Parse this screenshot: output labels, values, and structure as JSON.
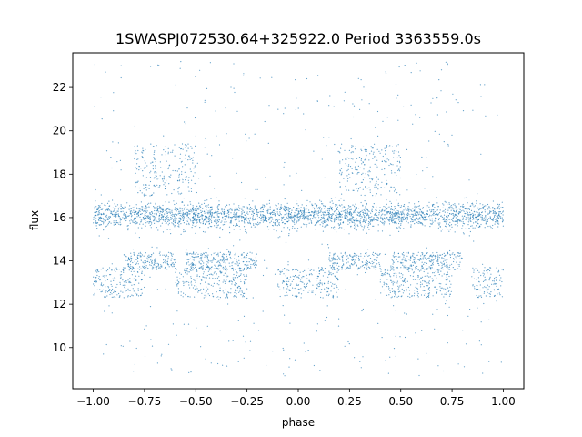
{
  "chart_data": {
    "type": "scatter",
    "title": "1SWASPJ072530.64+325922.0 Period 3363559.0s",
    "xlabel": "phase",
    "ylabel": "flux",
    "xlim": [
      -1.1,
      1.1
    ],
    "ylim": [
      8.1,
      23.6
    ],
    "x_ticks": [
      -1.0,
      -0.75,
      -0.5,
      -0.25,
      0.0,
      0.25,
      0.5,
      0.75,
      1.0
    ],
    "x_tick_labels": [
      "−1.00",
      "−0.75",
      "−0.50",
      "−0.25",
      "0.00",
      "0.25",
      "0.50",
      "0.75",
      "1.00"
    ],
    "y_ticks": [
      10,
      12,
      14,
      16,
      18,
      20,
      22
    ],
    "y_tick_labels": [
      "10",
      "12",
      "14",
      "16",
      "18",
      "20",
      "22"
    ],
    "grid": false,
    "legend": "none",
    "marker_color": "#1f77b4",
    "phase_range": [
      -1.0,
      1.0
    ],
    "point_density": "dense",
    "series": [
      {
        "description": "main band of points, symmetric about phase 0 (repeats with period 1 in phase)",
        "y_center": 16.1,
        "y_spread": [
          15.0,
          17.0
        ]
      },
      {
        "description": "lower clump",
        "y_range": [
          12.3,
          13.7
        ],
        "phase_ranges": [
          [
            -1.0,
            -0.75
          ],
          [
            -0.6,
            -0.25
          ],
          [
            -0.1,
            0.2
          ],
          [
            0.4,
            0.75
          ],
          [
            0.85,
            1.0
          ]
        ]
      },
      {
        "description": "mid-lower clump",
        "y_range": [
          13.6,
          14.4
        ],
        "phase_ranges": [
          [
            -0.85,
            -0.6
          ],
          [
            -0.55,
            -0.2
          ],
          [
            0.15,
            0.4
          ],
          [
            0.45,
            0.8
          ]
        ]
      },
      {
        "description": "upper excursions",
        "y_range": [
          17.0,
          19.4
        ],
        "phase_ranges": [
          [
            -0.8,
            -0.5
          ],
          [
            0.2,
            0.5
          ]
        ]
      }
    ],
    "scattered_outliers_y_range": [
      8.7,
      23.2
    ]
  }
}
